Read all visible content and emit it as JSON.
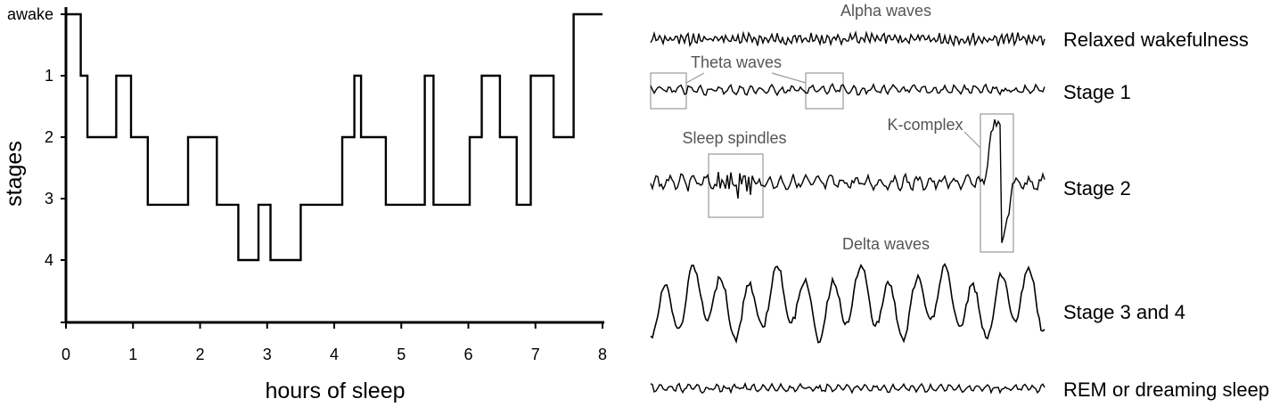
{
  "chart_data": {
    "type": "line",
    "xlabel": "hours of sleep",
    "ylabel": "stages",
    "xlim": [
      0,
      8
    ],
    "x_ticks": [
      "0",
      "1",
      "2",
      "3",
      "4",
      "5",
      "6",
      "7",
      "8"
    ],
    "y_ticks": [
      "awake",
      "1",
      "2",
      "3",
      "4"
    ],
    "y_values_for_ticks": [
      0,
      1,
      2,
      3,
      4
    ],
    "series": [
      {
        "step_points": [
          [
            0,
            0
          ],
          [
            0.22,
            0
          ],
          [
            0.22,
            1
          ],
          [
            0.32,
            1
          ],
          [
            0.32,
            2
          ],
          [
            0.75,
            2
          ],
          [
            0.75,
            1
          ],
          [
            0.97,
            1
          ],
          [
            0.97,
            2
          ],
          [
            1.22,
            2
          ],
          [
            1.22,
            3.1
          ],
          [
            1.82,
            3.1
          ],
          [
            1.82,
            2
          ],
          [
            2.25,
            2
          ],
          [
            2.25,
            3.1
          ],
          [
            2.57,
            3.1
          ],
          [
            2.57,
            4
          ],
          [
            2.87,
            4
          ],
          [
            2.87,
            3.1
          ],
          [
            3.05,
            3.1
          ],
          [
            3.05,
            4
          ],
          [
            3.5,
            4
          ],
          [
            3.5,
            3.1
          ],
          [
            4.12,
            3.1
          ],
          [
            4.12,
            2
          ],
          [
            4.3,
            2
          ],
          [
            4.3,
            1
          ],
          [
            4.4,
            1
          ],
          [
            4.4,
            2
          ],
          [
            4.77,
            2
          ],
          [
            4.77,
            3.1
          ],
          [
            5.35,
            3.1
          ],
          [
            5.35,
            1
          ],
          [
            5.48,
            1
          ],
          [
            5.48,
            3.1
          ],
          [
            6.02,
            3.1
          ],
          [
            6.02,
            2
          ],
          [
            6.2,
            2
          ],
          [
            6.2,
            1
          ],
          [
            6.47,
            1
          ],
          [
            6.47,
            2
          ],
          [
            6.72,
            2
          ],
          [
            6.72,
            3.1
          ],
          [
            6.93,
            3.1
          ],
          [
            6.93,
            1
          ],
          [
            7.27,
            1
          ],
          [
            7.27,
            2
          ],
          [
            7.57,
            2
          ],
          [
            7.57,
            0
          ],
          [
            8.0,
            0
          ]
        ]
      }
    ]
  },
  "eeg": {
    "traces": [
      {
        "stage": "Relaxed wakefulness",
        "wave_label": "Alpha waves",
        "amplitude": 7,
        "frequency": 1.0
      },
      {
        "stage": "Stage 1",
        "wave_label": "Theta waves",
        "amplitude": 6,
        "frequency": 0.55
      },
      {
        "stage": "Stage 2",
        "wave_label": "Sleep spindles",
        "second_label": "K-complex",
        "amplitude": 9,
        "frequency": 0.45
      },
      {
        "stage": "Stage 3 and 4",
        "wave_label": "Delta waves",
        "amplitude": 40,
        "frequency": 0.12
      },
      {
        "stage": "REM or dreaming sleep",
        "wave_label": "",
        "amplitude": 5,
        "frequency": 0.6
      }
    ]
  },
  "colors": {
    "line": "#000000",
    "box": "#999999",
    "label_gray": "#555555"
  }
}
